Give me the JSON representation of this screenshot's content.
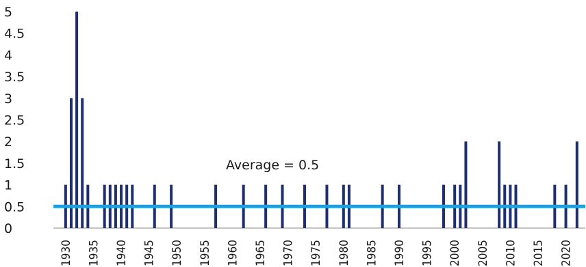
{
  "chart_data": {
    "type": "bar",
    "x_range": [
      1930,
      2023
    ],
    "ylim": [
      0,
      5
    ],
    "y_ticks": [
      "0",
      "0.5",
      "1",
      "1.5",
      "2",
      "2.5",
      "3",
      "3.5",
      "4",
      "4.5",
      "5"
    ],
    "x_ticks": [
      "1930",
      "1935",
      "1940",
      "1945",
      "1950",
      "1955",
      "1960",
      "1965",
      "1970",
      "1975",
      "1980",
      "1985",
      "1990",
      "1995",
      "2000",
      "2005",
      "2010",
      "2015",
      "2020"
    ],
    "x": [
      1930,
      1931,
      1932,
      1933,
      1934,
      1937,
      1938,
      1939,
      1940,
      1941,
      1942,
      1946,
      1949,
      1957,
      1962,
      1966,
      1969,
      1973,
      1977,
      1980,
      1981,
      1987,
      1990,
      1998,
      2000,
      2001,
      2002,
      2008,
      2009,
      2010,
      2011,
      2018,
      2020,
      2022
    ],
    "values": [
      1,
      3,
      5,
      3,
      1,
      1,
      1,
      1,
      1,
      1,
      1,
      1,
      1,
      1,
      1,
      1,
      1,
      1,
      1,
      1,
      1,
      1,
      1,
      1,
      1,
      1,
      2,
      2,
      1,
      1,
      1,
      1,
      1,
      2
    ],
    "average": 0.5,
    "average_label": "Average = 0.5",
    "bar_color": "#1f2e6e",
    "average_line_color": "#1ea0dc",
    "grid": false,
    "legend": "none"
  }
}
